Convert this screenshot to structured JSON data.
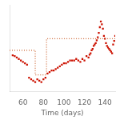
{
  "chart_data": {
    "type": "scatter",
    "xlabel": "Time (days)",
    "xlim": [
      47,
      150
    ],
    "ylim": [
      -0.05,
      1.15
    ],
    "xticks": [
      60,
      80,
      100,
      120,
      140
    ],
    "grid": false,
    "tick_labels": "x",
    "series": [
      {
        "type": "line",
        "color": "#cc6633",
        "line_style": "dotted",
        "x": [
          47,
          72,
          72,
          83,
          83,
          150
        ],
        "values": [
          0.52,
          0.52,
          0.18,
          0.18,
          0.68,
          0.68
        ]
      },
      {
        "type": "scatter",
        "color": "#cc1100",
        "marker": "square",
        "x": [
          50,
          52,
          54,
          56,
          58,
          60,
          62,
          64,
          66,
          68,
          70,
          72,
          74,
          76,
          78,
          80,
          82,
          84,
          86,
          88,
          90,
          92,
          94,
          96,
          98,
          100,
          102,
          104,
          106,
          108,
          110,
          112,
          114,
          116,
          118,
          120,
          122,
          124,
          125,
          126,
          127,
          128,
          129,
          130,
          131,
          132,
          133,
          134,
          135,
          136,
          137,
          138,
          139,
          140,
          141,
          142,
          143,
          144,
          145,
          146,
          147,
          148,
          149,
          150
        ],
        "values": [
          0.45,
          0.44,
          0.42,
          0.4,
          0.38,
          0.36,
          0.34,
          0.32,
          0.14,
          0.12,
          0.1,
          0.08,
          0.12,
          0.1,
          0.08,
          0.12,
          0.14,
          0.2,
          0.22,
          0.24,
          0.24,
          0.26,
          0.28,
          0.3,
          0.32,
          0.34,
          0.34,
          0.36,
          0.38,
          0.38,
          0.38,
          0.4,
          0.38,
          0.36,
          0.4,
          0.38,
          0.44,
          0.42,
          0.46,
          0.48,
          0.52,
          0.54,
          0.58,
          0.6,
          0.62,
          0.66,
          0.7,
          0.76,
          0.84,
          0.92,
          0.88,
          0.82,
          0.72,
          0.68,
          0.62,
          0.58,
          0.56,
          0.54,
          0.52,
          0.5,
          0.48,
          0.6,
          0.65,
          0.72
        ]
      }
    ]
  }
}
